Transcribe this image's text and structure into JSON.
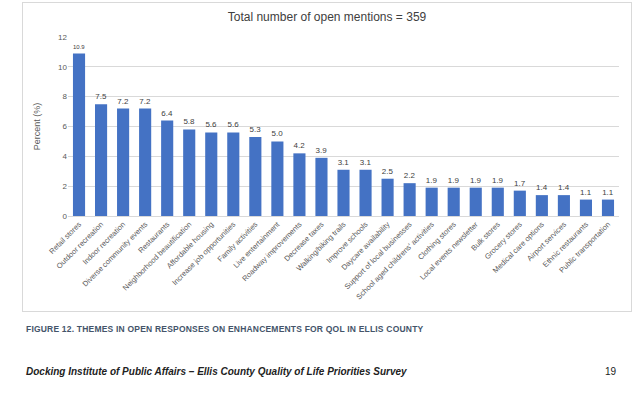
{
  "chart_data": {
    "type": "bar",
    "title": "Total number of open mentions = 359",
    "y_label": "Percent (%)",
    "categories": [
      "Retail stores",
      "Outdoor recreation",
      "Indoor recreation",
      "Diverse community events",
      "Restaurants",
      "Neighborhood beautification",
      "Affordable housing",
      "Increase job opportunities",
      "Family activities",
      "Live entertainment",
      "Roadway improvements",
      "Decrease taxes",
      "Walking/biking trails",
      "Improve schools",
      "Daycare availability",
      "Support of local businesses",
      "School aged childrens' activities",
      "Clothing stores",
      "Local events newsletter",
      "Bulk stores",
      "Grocery stores",
      "Medical care options",
      "Airport services",
      "Ethnic restaurants",
      "Public transportation"
    ],
    "values": [
      10.9,
      7.5,
      7.2,
      7.2,
      6.4,
      5.8,
      5.6,
      5.6,
      5.3,
      5.0,
      4.2,
      3.9,
      3.1,
      3.1,
      2.5,
      2.2,
      1.9,
      1.9,
      1.9,
      1.9,
      1.7,
      1.4,
      1.4,
      1.1,
      1.1
    ],
    "value_labels": [
      "10.9",
      "7.5",
      "7.2",
      "7.2",
      "6.4",
      "5.8",
      "5.6",
      "5.6",
      "5.3",
      "5.0",
      "4.2",
      "3.9",
      "3.1",
      "3.1",
      "2.5",
      "2.2",
      "1.9",
      "1.9",
      "1.9",
      "1.9",
      "1.7",
      "1.4",
      "1.4",
      "1.1",
      "1.1"
    ],
    "data_labels": true,
    "color": "#4472c4",
    "ylim": [
      0,
      12
    ],
    "yticks": [
      0,
      2,
      4,
      6,
      8,
      10,
      12
    ],
    "grid": true
  },
  "caption": "FIGURE 12. THEMES IN OPEN RESPONSES ON ENHANCEMENTS FOR QOL IN ELLIS COUNTY",
  "footer": {
    "left": "Docking Institute of Public Affairs – Ellis County Quality of Life Priorities Survey",
    "right": 19
  }
}
